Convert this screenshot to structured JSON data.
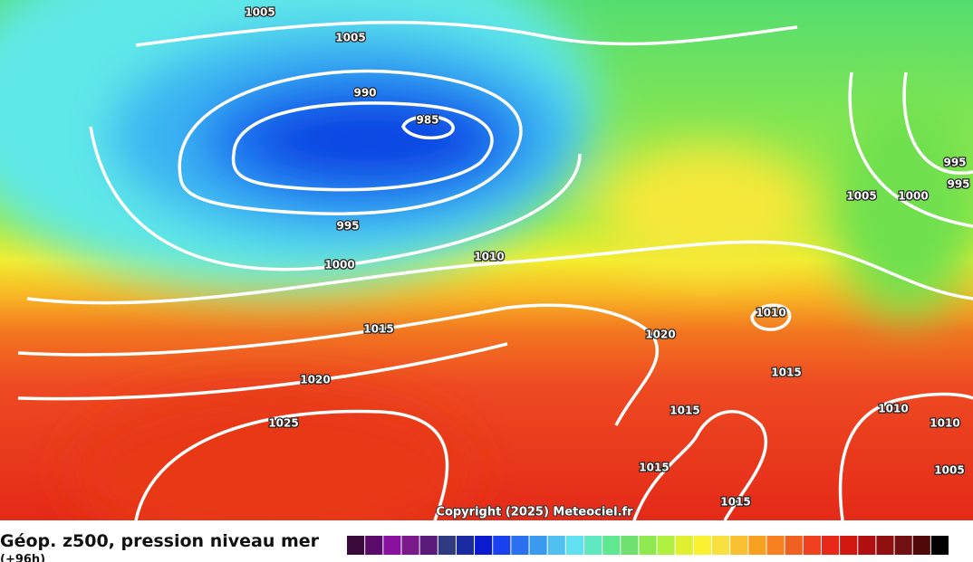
{
  "map": {
    "title": "Géop. z500, pression niveau mer",
    "subtitle": "(+96h)",
    "copyright": "Copyright (2025) Meteociel.fr",
    "isobar_labels": [
      "1005",
      "1005",
      "990",
      "985",
      "995",
      "1000",
      "1010",
      "1015",
      "1020",
      "1025",
      "1020",
      "1010",
      "1015",
      "1015",
      "1015",
      "1015",
      "1005",
      "1000",
      "995",
      "995",
      "1010",
      "1010",
      "1005"
    ]
  }
}
